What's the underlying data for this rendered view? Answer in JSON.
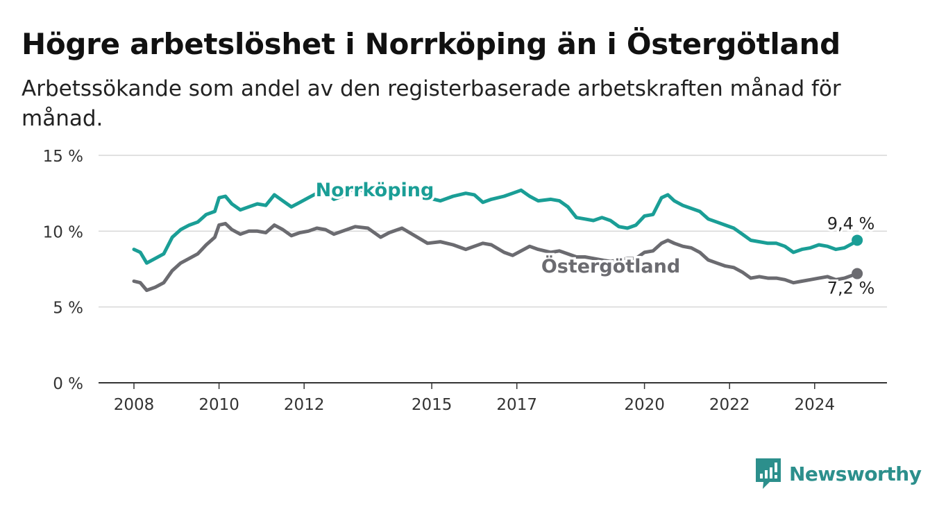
{
  "title": "Högre arbetslöshet i Norrköping än i Östergötland",
  "subtitle": "Arbetssökande som andel av den registerbaserade arbetskraften månad för månad.",
  "brand": {
    "name": "Newsworthy",
    "icon": "newsworthy-logo-icon",
    "color": "#2c8f8c"
  },
  "chart_data": {
    "type": "line",
    "title": "Högre arbetslöshet i Norrköping än i Östergötland",
    "subtitle": "Arbetssökande som andel av den registerbaserade arbetskraften månad för månad.",
    "xlabel": "",
    "ylabel": "",
    "ylim": [
      0,
      15
    ],
    "xlim": [
      2008,
      2025.5
    ],
    "y_ticks": [
      {
        "value": 0,
        "label": "0 %"
      },
      {
        "value": 5,
        "label": "5 %"
      },
      {
        "value": 10,
        "label": "10 %"
      },
      {
        "value": 15,
        "label": "15 %"
      }
    ],
    "x_ticks": [
      {
        "value": 2008,
        "label": "2008"
      },
      {
        "value": 2010,
        "label": "2010"
      },
      {
        "value": 2012,
        "label": "2012"
      },
      {
        "value": 2015,
        "label": "2015"
      },
      {
        "value": 2017,
        "label": "2017"
      },
      {
        "value": 2020,
        "label": "2020"
      },
      {
        "value": 2022,
        "label": "2022"
      },
      {
        "value": 2024,
        "label": "2024"
      }
    ],
    "grid": true,
    "legend": "inline labels",
    "series": [
      {
        "name": "Norrköping",
        "color": "#1a9e96",
        "end_label": "9,4 %",
        "points": [
          [
            2008.0,
            8.8
          ],
          [
            2008.15,
            8.6
          ],
          [
            2008.3,
            7.9
          ],
          [
            2008.5,
            8.2
          ],
          [
            2008.7,
            8.5
          ],
          [
            2008.9,
            9.6
          ],
          [
            2009.1,
            10.1
          ],
          [
            2009.3,
            10.4
          ],
          [
            2009.5,
            10.6
          ],
          [
            2009.7,
            11.1
          ],
          [
            2009.9,
            11.3
          ],
          [
            2010.0,
            12.2
          ],
          [
            2010.15,
            12.3
          ],
          [
            2010.3,
            11.8
          ],
          [
            2010.5,
            11.4
          ],
          [
            2010.7,
            11.6
          ],
          [
            2010.9,
            11.8
          ],
          [
            2011.1,
            11.7
          ],
          [
            2011.3,
            12.4
          ],
          [
            2011.5,
            12.0
          ],
          [
            2011.7,
            11.6
          ],
          [
            2011.9,
            11.9
          ],
          [
            2012.1,
            12.2
          ],
          [
            2012.3,
            12.5
          ],
          [
            2012.5,
            12.6
          ],
          [
            2012.7,
            12.1
          ],
          [
            2012.9,
            12.3
          ],
          [
            2013.2,
            12.9
          ],
          [
            2013.5,
            12.5
          ],
          [
            2013.8,
            12.7
          ],
          [
            2014.0,
            12.8
          ],
          [
            2014.3,
            12.6
          ],
          [
            2014.6,
            12.4
          ],
          [
            2014.9,
            12.2
          ],
          [
            2015.2,
            12.0
          ],
          [
            2015.5,
            12.3
          ],
          [
            2015.8,
            12.5
          ],
          [
            2016.0,
            12.4
          ],
          [
            2016.2,
            11.9
          ],
          [
            2016.4,
            12.1
          ],
          [
            2016.7,
            12.3
          ],
          [
            2016.9,
            12.5
          ],
          [
            2017.1,
            12.7
          ],
          [
            2017.3,
            12.3
          ],
          [
            2017.5,
            12.0
          ],
          [
            2017.8,
            12.1
          ],
          [
            2018.0,
            12.0
          ],
          [
            2018.2,
            11.6
          ],
          [
            2018.4,
            10.9
          ],
          [
            2018.6,
            10.8
          ],
          [
            2018.8,
            10.7
          ],
          [
            2019.0,
            10.9
          ],
          [
            2019.2,
            10.7
          ],
          [
            2019.4,
            10.3
          ],
          [
            2019.6,
            10.2
          ],
          [
            2019.8,
            10.4
          ],
          [
            2020.0,
            11.0
          ],
          [
            2020.2,
            11.1
          ],
          [
            2020.4,
            12.2
          ],
          [
            2020.55,
            12.4
          ],
          [
            2020.7,
            12.0
          ],
          [
            2020.9,
            11.7
          ],
          [
            2021.1,
            11.5
          ],
          [
            2021.3,
            11.3
          ],
          [
            2021.5,
            10.8
          ],
          [
            2021.7,
            10.6
          ],
          [
            2021.9,
            10.4
          ],
          [
            2022.1,
            10.2
          ],
          [
            2022.3,
            9.8
          ],
          [
            2022.5,
            9.4
          ],
          [
            2022.7,
            9.3
          ],
          [
            2022.9,
            9.2
          ],
          [
            2023.1,
            9.2
          ],
          [
            2023.3,
            9.0
          ],
          [
            2023.5,
            8.6
          ],
          [
            2023.7,
            8.8
          ],
          [
            2023.9,
            8.9
          ],
          [
            2024.1,
            9.1
          ],
          [
            2024.3,
            9.0
          ],
          [
            2024.5,
            8.8
          ],
          [
            2024.7,
            8.9
          ],
          [
            2024.9,
            9.2
          ],
          [
            2025.0,
            9.4
          ]
        ]
      },
      {
        "name": "Östergötland",
        "color": "#6b6b70",
        "end_label": "7,2 %",
        "points": [
          [
            2008.0,
            6.7
          ],
          [
            2008.15,
            6.6
          ],
          [
            2008.3,
            6.1
          ],
          [
            2008.5,
            6.3
          ],
          [
            2008.7,
            6.6
          ],
          [
            2008.9,
            7.4
          ],
          [
            2009.1,
            7.9
          ],
          [
            2009.3,
            8.2
          ],
          [
            2009.5,
            8.5
          ],
          [
            2009.7,
            9.1
          ],
          [
            2009.9,
            9.6
          ],
          [
            2010.0,
            10.4
          ],
          [
            2010.15,
            10.5
          ],
          [
            2010.3,
            10.1
          ],
          [
            2010.5,
            9.8
          ],
          [
            2010.7,
            10.0
          ],
          [
            2010.9,
            10.0
          ],
          [
            2011.1,
            9.9
          ],
          [
            2011.3,
            10.4
          ],
          [
            2011.5,
            10.1
          ],
          [
            2011.7,
            9.7
          ],
          [
            2011.9,
            9.9
          ],
          [
            2012.1,
            10.0
          ],
          [
            2012.3,
            10.2
          ],
          [
            2012.5,
            10.1
          ],
          [
            2012.7,
            9.8
          ],
          [
            2012.9,
            10.0
          ],
          [
            2013.2,
            10.3
          ],
          [
            2013.5,
            10.2
          ],
          [
            2013.8,
            9.6
          ],
          [
            2014.0,
            9.9
          ],
          [
            2014.3,
            10.2
          ],
          [
            2014.6,
            9.7
          ],
          [
            2014.9,
            9.2
          ],
          [
            2015.2,
            9.3
          ],
          [
            2015.5,
            9.1
          ],
          [
            2015.8,
            8.8
          ],
          [
            2016.0,
            9.0
          ],
          [
            2016.2,
            9.2
          ],
          [
            2016.4,
            9.1
          ],
          [
            2016.7,
            8.6
          ],
          [
            2016.9,
            8.4
          ],
          [
            2017.1,
            8.7
          ],
          [
            2017.3,
            9.0
          ],
          [
            2017.5,
            8.8
          ],
          [
            2017.8,
            8.6
          ],
          [
            2018.0,
            8.7
          ],
          [
            2018.2,
            8.5
          ],
          [
            2018.4,
            8.3
          ],
          [
            2018.6,
            8.3
          ],
          [
            2018.8,
            8.2
          ],
          [
            2019.0,
            8.1
          ],
          [
            2019.2,
            8.0
          ],
          [
            2019.4,
            8.1
          ],
          [
            2019.6,
            8.2
          ],
          [
            2019.8,
            8.2
          ],
          [
            2020.0,
            8.6
          ],
          [
            2020.2,
            8.7
          ],
          [
            2020.4,
            9.2
          ],
          [
            2020.55,
            9.4
          ],
          [
            2020.7,
            9.2
          ],
          [
            2020.9,
            9.0
          ],
          [
            2021.1,
            8.9
          ],
          [
            2021.3,
            8.6
          ],
          [
            2021.5,
            8.1
          ],
          [
            2021.7,
            7.9
          ],
          [
            2021.9,
            7.7
          ],
          [
            2022.1,
            7.6
          ],
          [
            2022.3,
            7.3
          ],
          [
            2022.5,
            6.9
          ],
          [
            2022.7,
            7.0
          ],
          [
            2022.9,
            6.9
          ],
          [
            2023.1,
            6.9
          ],
          [
            2023.3,
            6.8
          ],
          [
            2023.5,
            6.6
          ],
          [
            2023.7,
            6.7
          ],
          [
            2023.9,
            6.8
          ],
          [
            2024.1,
            6.9
          ],
          [
            2024.3,
            7.0
          ],
          [
            2024.5,
            6.8
          ],
          [
            2024.7,
            6.9
          ],
          [
            2024.9,
            7.1
          ],
          [
            2025.0,
            7.2
          ]
        ]
      }
    ]
  }
}
